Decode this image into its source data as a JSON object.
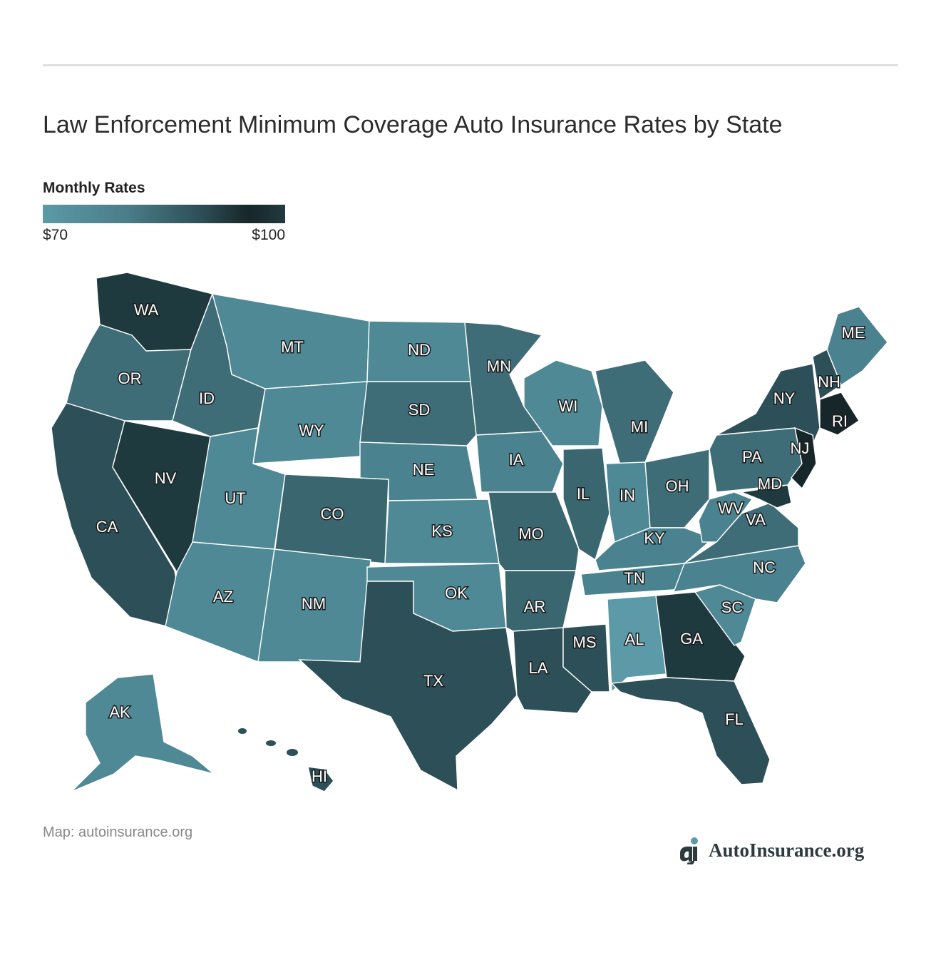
{
  "title": "Law Enforcement Minimum Coverage Auto Insurance Rates by State",
  "legend": {
    "title": "Monthly Rates",
    "min_label": "$70",
    "max_label": "$100",
    "color_low": "#5b9aa6",
    "color_high": "#172629"
  },
  "credit": "Map: autoinsurance.org",
  "brand": {
    "name": "AutoInsurance.org",
    "icon": "autoinsurance-logo-icon"
  },
  "chart_data": {
    "type": "choropleth",
    "scale": {
      "min": 70,
      "max": 100,
      "unit": "USD per month"
    },
    "states": [
      {
        "code": "WA",
        "shade": "#1f3a3f"
      },
      {
        "code": "OR",
        "shade": "#3f6d77"
      },
      {
        "code": "CA",
        "shade": "#2d4f57"
      },
      {
        "code": "NV",
        "shade": "#1f3a3f"
      },
      {
        "code": "ID",
        "shade": "#3f6d77"
      },
      {
        "code": "MT",
        "shade": "#4e8995"
      },
      {
        "code": "WY",
        "shade": "#4e8995"
      },
      {
        "code": "UT",
        "shade": "#4e8995"
      },
      {
        "code": "AZ",
        "shade": "#4e8995"
      },
      {
        "code": "CO",
        "shade": "#3a6670"
      },
      {
        "code": "NM",
        "shade": "#4e8995"
      },
      {
        "code": "ND",
        "shade": "#4e8995"
      },
      {
        "code": "SD",
        "shade": "#3f6d77"
      },
      {
        "code": "NE",
        "shade": "#4a838f"
      },
      {
        "code": "KS",
        "shade": "#4e8995"
      },
      {
        "code": "OK",
        "shade": "#4e8995"
      },
      {
        "code": "TX",
        "shade": "#2d4f57"
      },
      {
        "code": "MN",
        "shade": "#3f6d77"
      },
      {
        "code": "IA",
        "shade": "#4a838f"
      },
      {
        "code": "MO",
        "shade": "#3a6670"
      },
      {
        "code": "AR",
        "shade": "#3a6670"
      },
      {
        "code": "LA",
        "shade": "#2d4f57"
      },
      {
        "code": "WI",
        "shade": "#4e8995"
      },
      {
        "code": "IL",
        "shade": "#3a6670"
      },
      {
        "code": "MI",
        "shade": "#3f6d77"
      },
      {
        "code": "IN",
        "shade": "#4e8995"
      },
      {
        "code": "OH",
        "shade": "#3f6d77"
      },
      {
        "code": "KY",
        "shade": "#4a838f"
      },
      {
        "code": "TN",
        "shade": "#4a838f"
      },
      {
        "code": "MS",
        "shade": "#2d4f57"
      },
      {
        "code": "AL",
        "shade": "#5b9aa6"
      },
      {
        "code": "GA",
        "shade": "#1f3a3f"
      },
      {
        "code": "FL",
        "shade": "#2d4f57"
      },
      {
        "code": "SC",
        "shade": "#4e8995"
      },
      {
        "code": "NC",
        "shade": "#4a838f"
      },
      {
        "code": "VA",
        "shade": "#3f6d77"
      },
      {
        "code": "WV",
        "shade": "#4a838f"
      },
      {
        "code": "PA",
        "shade": "#3f6d77"
      },
      {
        "code": "NY",
        "shade": "#2d4f57"
      },
      {
        "code": "NJ",
        "shade": "#172629"
      },
      {
        "code": "MD",
        "shade": "#1f3a3f"
      },
      {
        "code": "NH",
        "shade": "#2d4f57"
      },
      {
        "code": "RI",
        "shade": "#172629"
      },
      {
        "code": "ME",
        "shade": "#4a838f"
      },
      {
        "code": "AK",
        "shade": "#4e8995"
      },
      {
        "code": "HI",
        "shade": "#2d4f57"
      }
    ]
  }
}
